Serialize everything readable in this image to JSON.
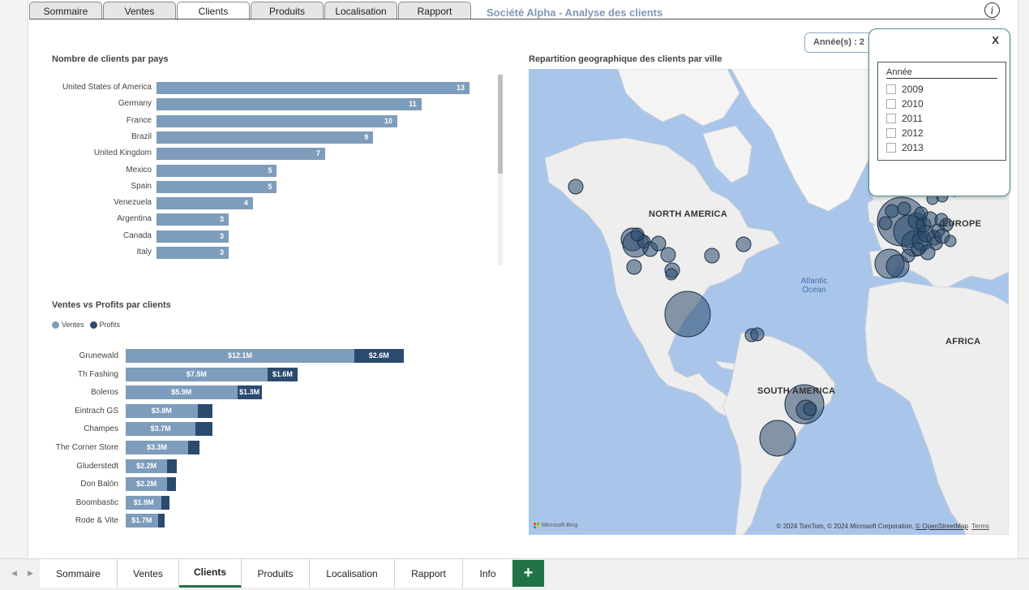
{
  "top_tabs": [
    "Sommaire",
    "Ventes",
    "Clients",
    "Produits",
    "Localisation",
    "Rapport"
  ],
  "active_top_tab": "Clients",
  "report_title": "Société Alpha - Analyse des clients",
  "chart_data": [
    {
      "type": "bar",
      "orientation": "horizontal",
      "title": "Nombre de clients par pays",
      "categories": [
        "United States of America",
        "Germany",
        "France",
        "Brazil",
        "United Kingdom",
        "Mexico",
        "Spain",
        "Venezuela",
        "Argentina",
        "Canada",
        "Italy"
      ],
      "values": [
        13,
        11,
        10,
        9,
        7,
        5,
        5,
        4,
        3,
        3,
        3
      ],
      "xlim": [
        0,
        13
      ],
      "color": "#7e9cbb"
    },
    {
      "type": "bar",
      "orientation": "horizontal",
      "stacked": true,
      "title": "Ventes vs Profits par clients",
      "legend_position": "top-left",
      "categories": [
        "Grunewald",
        "Th Fashing",
        "Boleros",
        "Eintrach GS",
        "Champes",
        "The Corner Store",
        "Gluderstedt",
        "Don Balón",
        "Boombastic",
        "Rode & Vite"
      ],
      "series": [
        {
          "name": "Ventes",
          "color": "#7e9cbb",
          "values": [
            12.1,
            7.5,
            5.9,
            3.8,
            3.7,
            3.3,
            2.2,
            2.2,
            1.9,
            1.7
          ],
          "labels": [
            "$12.1M",
            "$7.5M",
            "$5.9M",
            "$3.8M",
            "$3.7M",
            "$3.3M",
            "$2.2M",
            "$2.2M",
            "$1.9M",
            "$1.7M"
          ]
        },
        {
          "name": "Profits",
          "color": "#2b4a6e",
          "values": [
            2.6,
            1.6,
            1.3,
            0.8,
            0.9,
            0.6,
            0.5,
            0.45,
            0.4,
            0.35
          ],
          "labels": [
            "$2.6M",
            "$1.6M",
            "$1.3M",
            "",
            "",
            "",
            "",
            "",
            "",
            ""
          ]
        }
      ],
      "xlim": [
        0,
        16
      ]
    }
  ],
  "map": {
    "title": "Repartition geographique des clients par ville",
    "labels": {
      "north_america": "NORTH AMERICA",
      "south_america": "SOUTH AMERICA",
      "europe": "EUROPE",
      "africa": "AFRICA",
      "ocean": "Atlantic Ocean"
    },
    "credit_prefix": "© 2024 TomTom, © 2024 Microsoft Corporation, ",
    "credit_link": "© OpenStreetMap",
    "terms": "Terms",
    "bing": "Microsoft Bing"
  },
  "year_filter": {
    "chip_label": "Année(s) :",
    "chip_value": "2",
    "close_label": "X",
    "header": "Année",
    "options": [
      "2009",
      "2010",
      "2011",
      "2012",
      "2013"
    ]
  },
  "sheet_tabs": [
    "Sommaire",
    "Ventes",
    "Clients",
    "Produits",
    "Localisation",
    "Rapport",
    "Info"
  ],
  "active_sheet": "Clients",
  "add_sheet_label": "+",
  "colors": {
    "bar": "#7e9cbb",
    "profit": "#2b4a6e",
    "map_water": "#a9c6ea",
    "land": "#eeeeee",
    "bubble": "#2b4a6e",
    "accent": "#217346"
  }
}
